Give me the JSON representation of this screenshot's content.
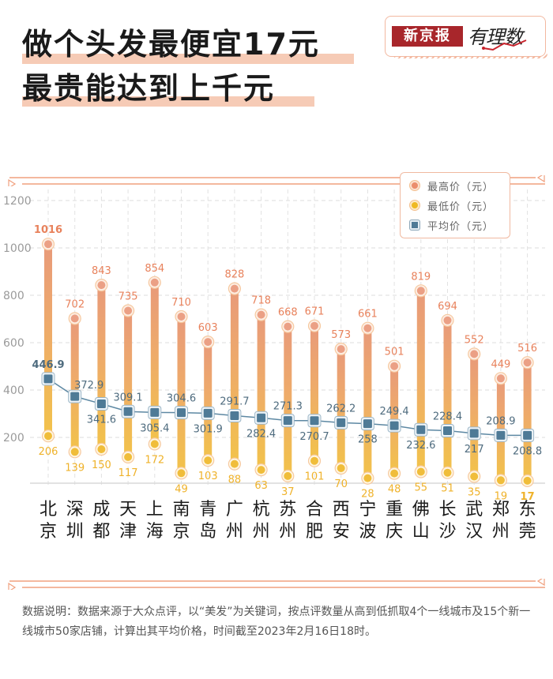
{
  "header": {
    "title_line1": "做个头发最便宜17元",
    "title_line2": "最贵能达到上千元",
    "logo_brand": "新京报",
    "logo_sub": "有理数"
  },
  "legend": {
    "max_label": "最高价（元）",
    "min_label": "最低价（元）",
    "avg_label": "平均价（元）"
  },
  "colors": {
    "max": "#e8825c",
    "min": "#efb22a",
    "avg": "#4e7a96",
    "accent": "#f0a07e"
  },
  "note": "数据说明：数据来源于大众点评，以“美发”为关键词，按点评数量从高到低抓取4个一线城市及15个新一线城市50家店铺，计算出其平均价格，时间截至2023年2月16日18时。",
  "chart_data": {
    "type": "bar",
    "title": "做个头发最便宜17元 最贵能达到上千元",
    "xlabel": "",
    "ylabel": "",
    "ylim": [
      0,
      1200
    ],
    "yticks": [
      200,
      400,
      600,
      800,
      1000,
      1200
    ],
    "grid": true,
    "legend_position": "top-right",
    "categories": [
      "北京",
      "深圳",
      "成都",
      "天津",
      "上海",
      "南京",
      "青岛",
      "广州",
      "杭州",
      "苏州",
      "合肥",
      "西安",
      "宁波",
      "重庆",
      "佛山",
      "长沙",
      "武汉",
      "郑州",
      "东莞"
    ],
    "series": [
      {
        "name": "最高价（元）",
        "values": [
          1016,
          702,
          843,
          735,
          854,
          710,
          603,
          828,
          718,
          668,
          671,
          573,
          661,
          501,
          819,
          694,
          552,
          449,
          516
        ]
      },
      {
        "name": "最低价（元）",
        "values": [
          206,
          139,
          150,
          117,
          172,
          49,
          103,
          88,
          63,
          37,
          101,
          70,
          28,
          48,
          55,
          51,
          35,
          19,
          17
        ]
      },
      {
        "name": "平均价（元）",
        "values": [
          446.9,
          372.9,
          341.6,
          309.1,
          305.4,
          304.6,
          301.9,
          291.7,
          282.4,
          271.3,
          270.7,
          262.2,
          258,
          249.4,
          232.6,
          228.4,
          217,
          208.9,
          208.8
        ]
      }
    ],
    "max_labels": [
      "1016",
      "702",
      "843",
      "735",
      "854",
      "710",
      "603",
      "828",
      "718",
      "668",
      "671",
      "573",
      "661",
      "501",
      "819",
      "694",
      "552",
      "449",
      "516"
    ],
    "min_labels": [
      "206",
      "139",
      "150",
      "117",
      "172",
      "49",
      "103",
      "88",
      "63",
      "37",
      "101",
      "70",
      "28",
      "48",
      "55",
      "51",
      "35",
      "19",
      "17"
    ],
    "avg_labels": [
      "446.9",
      "372.9",
      "341.6",
      "309.1",
      "305.4",
      "304.6",
      "301.9",
      "291.7",
      "282.4",
      "271.3",
      "270.7",
      "262.2",
      "258",
      "249.4",
      "232.6",
      "228.4",
      "217",
      "208.9",
      "208.8"
    ]
  }
}
